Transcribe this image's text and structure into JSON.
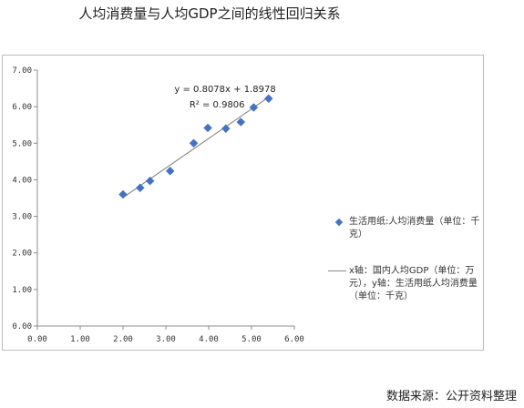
{
  "title": "人均消费量与人均GDP之间的线性回归关系",
  "source": "数据来源：公开资料整理",
  "chart_data": {
    "type": "scatter",
    "title": "人均消费量与人均GDP之间的线性回归关系",
    "xlabel": "",
    "ylabel": "",
    "xlim": [
      0,
      6
    ],
    "ylim": [
      0,
      7
    ],
    "x_ticks": [
      "0.00",
      "1.00",
      "2.00",
      "3.00",
      "4.00",
      "5.00",
      "6.00"
    ],
    "y_ticks": [
      "0.00",
      "1.00",
      "2.00",
      "3.00",
      "4.00",
      "5.00",
      "6.00",
      "7.00"
    ],
    "grid": false,
    "legend_position": "right",
    "series": [
      {
        "name": "生活用纸:人均消费量（单位：千克）",
        "marker": "diamond",
        "color": "#4472c4",
        "points": [
          {
            "x": 2.0,
            "y": 3.6
          },
          {
            "x": 2.4,
            "y": 3.78
          },
          {
            "x": 2.63,
            "y": 3.97
          },
          {
            "x": 3.1,
            "y": 4.24
          },
          {
            "x": 3.65,
            "y": 5.0
          },
          {
            "x": 3.98,
            "y": 5.42
          },
          {
            "x": 4.4,
            "y": 5.4
          },
          {
            "x": 4.75,
            "y": 5.58
          },
          {
            "x": 5.05,
            "y": 5.98
          },
          {
            "x": 5.4,
            "y": 6.22
          }
        ]
      }
    ],
    "trendline": {
      "label": "x轴：国内人均GDP（单位：万元），y轴：生活用纸人均消费量（单位：千克）",
      "slope": 0.8078,
      "intercept": 1.8978,
      "x_range": [
        2.0,
        5.4
      ],
      "color": "#808080",
      "equation": "y = 0.8078x + 1.8978",
      "r2": "R² = 0.9806"
    }
  }
}
